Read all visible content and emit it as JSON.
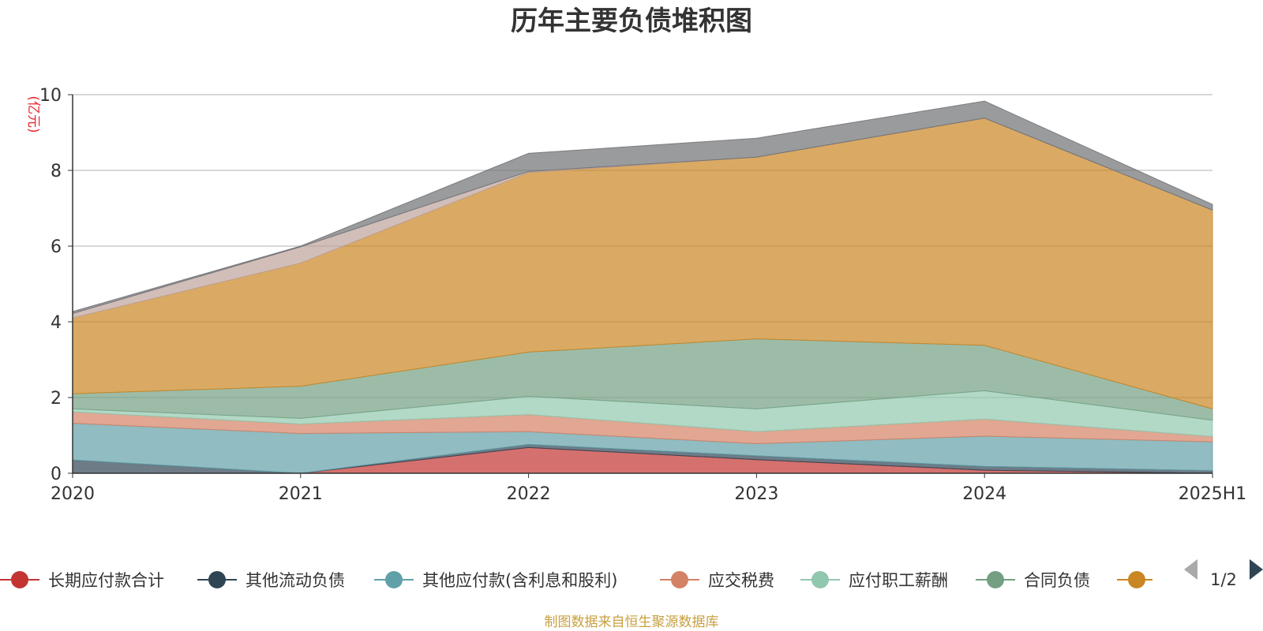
{
  "title": "历年主要负债堆积图",
  "unit_label": "(亿元)",
  "source_note": "制图数据来自恒生聚源数据库",
  "legend_page": "1/2",
  "chart_data": {
    "type": "area",
    "stacked": true,
    "title": "历年主要负债堆积图",
    "ylabel": "(亿元)",
    "ylim": [
      0,
      10
    ],
    "yticks": [
      0,
      2,
      4,
      6,
      8,
      10
    ],
    "grid": true,
    "legend_position": "bottom",
    "categories": [
      "2020",
      "2021",
      "2022",
      "2023",
      "2024",
      "2025H1"
    ],
    "series": [
      {
        "name": "长期应付款合计",
        "color": "#c23531",
        "values": [
          0,
          0,
          0.68,
          0.36,
          0.08,
          0
        ]
      },
      {
        "name": "其他流动负债",
        "color": "#2f4554",
        "values": [
          0.35,
          0,
          0.08,
          0.1,
          0.1,
          0.07
        ]
      },
      {
        "name": "其他应付款(含利息和股利)",
        "color": "#61a0a8",
        "values": [
          0.97,
          1.05,
          0.34,
          0.32,
          0.8,
          0.76
        ]
      },
      {
        "name": "应交税费",
        "color": "#d48265",
        "values": [
          0.3,
          0.25,
          0.45,
          0.32,
          0.45,
          0.14
        ]
      },
      {
        "name": "应付职工薪酬",
        "color": "#91c7ae",
        "values": [
          0.08,
          0.15,
          0.48,
          0.6,
          0.75,
          0.43
        ]
      },
      {
        "name": "合同负债",
        "color": "#749f83",
        "values": [
          0.4,
          0.85,
          1.17,
          1.85,
          1.2,
          0.3
        ]
      },
      {
        "name": "",
        "color": "#ca8622",
        "values": [
          2.0,
          3.25,
          4.74,
          4.8,
          6.0,
          5.25
        ]
      },
      {
        "name": "",
        "color": "#bda29a",
        "values": [
          0.12,
          0.43,
          0.03,
          0.0,
          0.0,
          0.0
        ]
      },
      {
        "name": "",
        "color": "#6e7074",
        "values": [
          0.05,
          0.02,
          0.48,
          0.5,
          0.45,
          0.15
        ]
      }
    ]
  }
}
